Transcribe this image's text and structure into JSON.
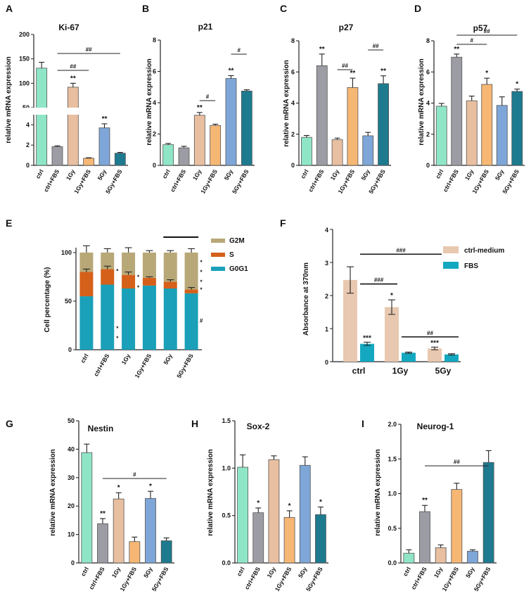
{
  "colors": {
    "ctrl": "#8fe6c6",
    "ctrl+FBS": "#9c9ca4",
    "1Gy": "#e8bfa0",
    "1Gy+FBS": "#f7b774",
    "5Gy": "#7ea6d8",
    "5Gy+FBS": "#1d7a8f",
    "G2M": "#b8a878",
    "S": "#d4601a",
    "G0G1": "#1aa0b8",
    "ctrl-medium": "#e8c8b0",
    "FBS": "#14a8c0"
  },
  "chart_data": [
    {
      "id": "A",
      "panel_label": "A",
      "type": "bar",
      "title": "Ki-67",
      "ylabel": "relative mRNA expression",
      "broken_axis": true,
      "lower_ylim": [
        0,
        5
      ],
      "upper_ylim": [
        50,
        200
      ],
      "lower_ticks": [
        "0",
        "2",
        "4"
      ],
      "upper_ticks": [
        "50",
        "100",
        "150",
        "200"
      ],
      "categories": [
        "ctrl",
        "ctrl+FBS",
        "1Gy",
        "1Gy+FBS",
        "5Gy",
        "5Gy+FBS"
      ],
      "values": [
        131,
        1.85,
        92,
        0.7,
        3.7,
        1.2
      ],
      "errors": [
        12,
        0.08,
        8,
        0.05,
        0.4,
        0.08
      ],
      "sig_above": [
        "",
        "",
        "**",
        "",
        "**",
        ""
      ],
      "brackets": [
        {
          "from": 1,
          "to": 3,
          "label": "##"
        },
        {
          "from": 1,
          "to": 5,
          "label": "##"
        }
      ]
    },
    {
      "id": "B",
      "panel_label": "B",
      "type": "bar",
      "title": "p21",
      "ylabel": "relative mRNA expression",
      "ylim": [
        0,
        8
      ],
      "ticks": [
        "0",
        "2",
        "4",
        "6",
        "8"
      ],
      "categories": [
        "ctrl",
        "ctrl+FBS",
        "1Gy",
        "1Gy+FBS",
        "5Gy",
        "5Gy+FBS"
      ],
      "values": [
        1.32,
        1.12,
        3.2,
        2.55,
        5.55,
        4.75
      ],
      "errors": [
        0.08,
        0.1,
        0.18,
        0.08,
        0.18,
        0.08
      ],
      "sig_above": [
        "",
        "",
        "**",
        "",
        "**",
        ""
      ],
      "brackets": [
        {
          "from": 2,
          "to": 3,
          "label": "#"
        },
        {
          "from": 4,
          "to": 5,
          "label": "#"
        }
      ]
    },
    {
      "id": "C",
      "panel_label": "C",
      "type": "bar",
      "title": "p27",
      "ylabel": "relative mRNA expression",
      "ylim": [
        0,
        8
      ],
      "ticks": [
        "0",
        "2",
        "4",
        "6",
        "8"
      ],
      "categories": [
        "ctrl",
        "ctrl+FBS",
        "1Gy",
        "1Gy+FBS",
        "5Gy",
        "5Gy+FBS"
      ],
      "values": [
        1.8,
        6.4,
        1.65,
        5.0,
        1.9,
        5.25
      ],
      "errors": [
        0.12,
        0.75,
        0.1,
        0.6,
        0.22,
        0.5
      ],
      "sig_above": [
        "",
        "**",
        "",
        "**",
        "",
        "**"
      ],
      "brackets": [
        {
          "from": 2,
          "to": 3,
          "label": "##"
        },
        {
          "from": 4,
          "to": 5,
          "label": "##"
        }
      ]
    },
    {
      "id": "D",
      "panel_label": "D",
      "type": "bar",
      "title": "p57",
      "ylabel": "relative mRNA expression",
      "ylim": [
        0,
        8
      ],
      "ticks": [
        "0",
        "2",
        "4",
        "6",
        "8"
      ],
      "categories": [
        "ctrl",
        "ctrl+FBS",
        "1Gy",
        "1Gy+FBS",
        "5Gy",
        "5Gy+FBS"
      ],
      "values": [
        3.8,
        6.95,
        4.15,
        5.2,
        3.85,
        4.75
      ],
      "errors": [
        0.18,
        0.2,
        0.3,
        0.4,
        0.55,
        0.15
      ],
      "sig_above": [
        "",
        "**",
        "",
        "*",
        "",
        "*"
      ],
      "brackets": [
        {
          "from": 1,
          "to": 3,
          "label": "#"
        },
        {
          "from": 1,
          "to": 5,
          "label": "##"
        }
      ]
    },
    {
      "id": "E",
      "panel_label": "E",
      "type": "stacked_bar",
      "ylabel": "Cell percentage (%)",
      "ylim": [
        0,
        100
      ],
      "ticks": [
        "0",
        "50",
        "100"
      ],
      "categories": [
        "ctrl",
        "ctrl+FBS",
        "1Gy",
        "1Gy+FBS",
        "5Gy",
        "5Gy+FBS"
      ],
      "legend": [
        "G2M",
        "S",
        "G0G1"
      ],
      "series": [
        {
          "name": "G0G1",
          "values": [
            55,
            67,
            63,
            66,
            63,
            58
          ]
        },
        {
          "name": "S",
          "values": [
            25,
            16,
            14,
            8,
            7,
            4
          ]
        },
        {
          "name": "G2M",
          "values": [
            20,
            17,
            23,
            26,
            30,
            38
          ]
        }
      ],
      "total_errors": [
        7,
        4,
        5,
        2,
        2,
        4
      ],
      "s_errors": [
        3,
        3,
        3,
        1,
        2,
        2
      ],
      "annotations": [
        {
          "cat": 1,
          "value": 81,
          "label": "*"
        },
        {
          "cat": 1,
          "value": 22,
          "label": "*"
        },
        {
          "cat": 1,
          "value": 12,
          "label": "*"
        },
        {
          "cat": 2,
          "value": 75,
          "label": "*"
        },
        {
          "cat": 2,
          "value": 64,
          "label": "*"
        },
        {
          "cat": 5,
          "value": 90,
          "label": "*"
        },
        {
          "cat": 5,
          "value": 80,
          "label": "*"
        },
        {
          "cat": 5,
          "value": 70,
          "label": "*"
        },
        {
          "cat": 5,
          "value": 62,
          "label": "*"
        },
        {
          "cat": 5,
          "value": 30,
          "label": "#"
        }
      ],
      "top_bar": {
        "from": 4,
        "to": 5
      }
    },
    {
      "id": "F",
      "panel_label": "F",
      "type": "grouped_bar",
      "ylabel": "Absorbance at 370nm",
      "ylim": [
        0,
        4
      ],
      "ticks": [
        "0",
        "1",
        "2",
        "3",
        "4"
      ],
      "categories": [
        "ctrl",
        "1Gy",
        "5Gy"
      ],
      "series": [
        {
          "name": "ctrl-medium",
          "values": [
            2.47,
            1.65,
            0.4
          ],
          "errors": [
            0.4,
            0.22,
            0.04
          ]
        },
        {
          "name": "FBS",
          "values": [
            0.54,
            0.27,
            0.22
          ],
          "errors": [
            0.05,
            0.02,
            0.02
          ]
        }
      ],
      "sig_above": [
        {
          "cat": 0,
          "series": 1,
          "label": "***"
        },
        {
          "cat": 1,
          "series": 0,
          "label": "*"
        },
        {
          "cat": 2,
          "series": 0,
          "label": "***"
        }
      ],
      "brackets": [
        {
          "from": 0.62,
          "to": 2.0,
          "value": 3.25,
          "label": "###"
        },
        {
          "from": 0.62,
          "to": 1.0,
          "value": 2.35,
          "label": "###"
        },
        {
          "from": 1.62,
          "to": 2.38,
          "value": 0.75,
          "label": "##"
        }
      ]
    },
    {
      "id": "G",
      "panel_label": "G",
      "type": "bar",
      "title": "Nestin",
      "ylabel": "relative mRNA expression",
      "ylim": [
        0,
        50
      ],
      "ticks": [
        "0",
        "10",
        "20",
        "30",
        "40",
        "50"
      ],
      "categories": [
        "ctrl",
        "ctrl+FBS",
        "1Gy",
        "1Gy+FBS",
        "5Gy",
        "5Gy+FBS"
      ],
      "values": [
        38.8,
        13.8,
        22.5,
        7.5,
        22.7,
        7.8
      ],
      "errors": [
        3,
        1.8,
        2.2,
        1.6,
        2.5,
        1.0
      ],
      "sig_above": [
        "",
        "**",
        "*",
        "",
        "*",
        ""
      ],
      "brackets": [
        {
          "from": 1,
          "to": 5,
          "label": "#"
        }
      ]
    },
    {
      "id": "H",
      "panel_label": "H",
      "type": "bar",
      "title": "Sox-2",
      "ylabel": "relative mRNA expression",
      "ylim": [
        0,
        1.5
      ],
      "ticks": [
        "0.0",
        "0.5",
        "1.0",
        "1.5"
      ],
      "categories": [
        "ctrl",
        "ctrl+FBS",
        "1Gy",
        "1Gy+FBS",
        "5Gy",
        "5Gy+FBS"
      ],
      "values": [
        1.01,
        0.53,
        1.09,
        0.48,
        1.03,
        0.51
      ],
      "errors": [
        0.13,
        0.05,
        0.04,
        0.07,
        0.09,
        0.08
      ],
      "sig_above": [
        "",
        "*",
        "",
        "*",
        "",
        "*"
      ],
      "brackets": []
    },
    {
      "id": "I",
      "panel_label": "I",
      "type": "bar",
      "title": "Neurog-1",
      "ylabel": "relative mRNA expression",
      "ylim": [
        0,
        2.0
      ],
      "ticks": [
        "0.0",
        "0.5",
        "1.0",
        "1.5",
        "2.0"
      ],
      "categories": [
        "ctrl",
        "ctrl+FBS",
        "1Gy",
        "1Gy+FBS",
        "5Gy",
        "5Gy+FBS"
      ],
      "values": [
        0.14,
        0.74,
        0.22,
        1.06,
        0.17,
        1.45
      ],
      "errors": [
        0.05,
        0.09,
        0.04,
        0.09,
        0.02,
        0.17
      ],
      "sig_above": [
        "",
        "**",
        "",
        "",
        "",
        ""
      ],
      "brackets": [
        {
          "from": 1,
          "to": 5,
          "label": "##"
        }
      ]
    }
  ]
}
